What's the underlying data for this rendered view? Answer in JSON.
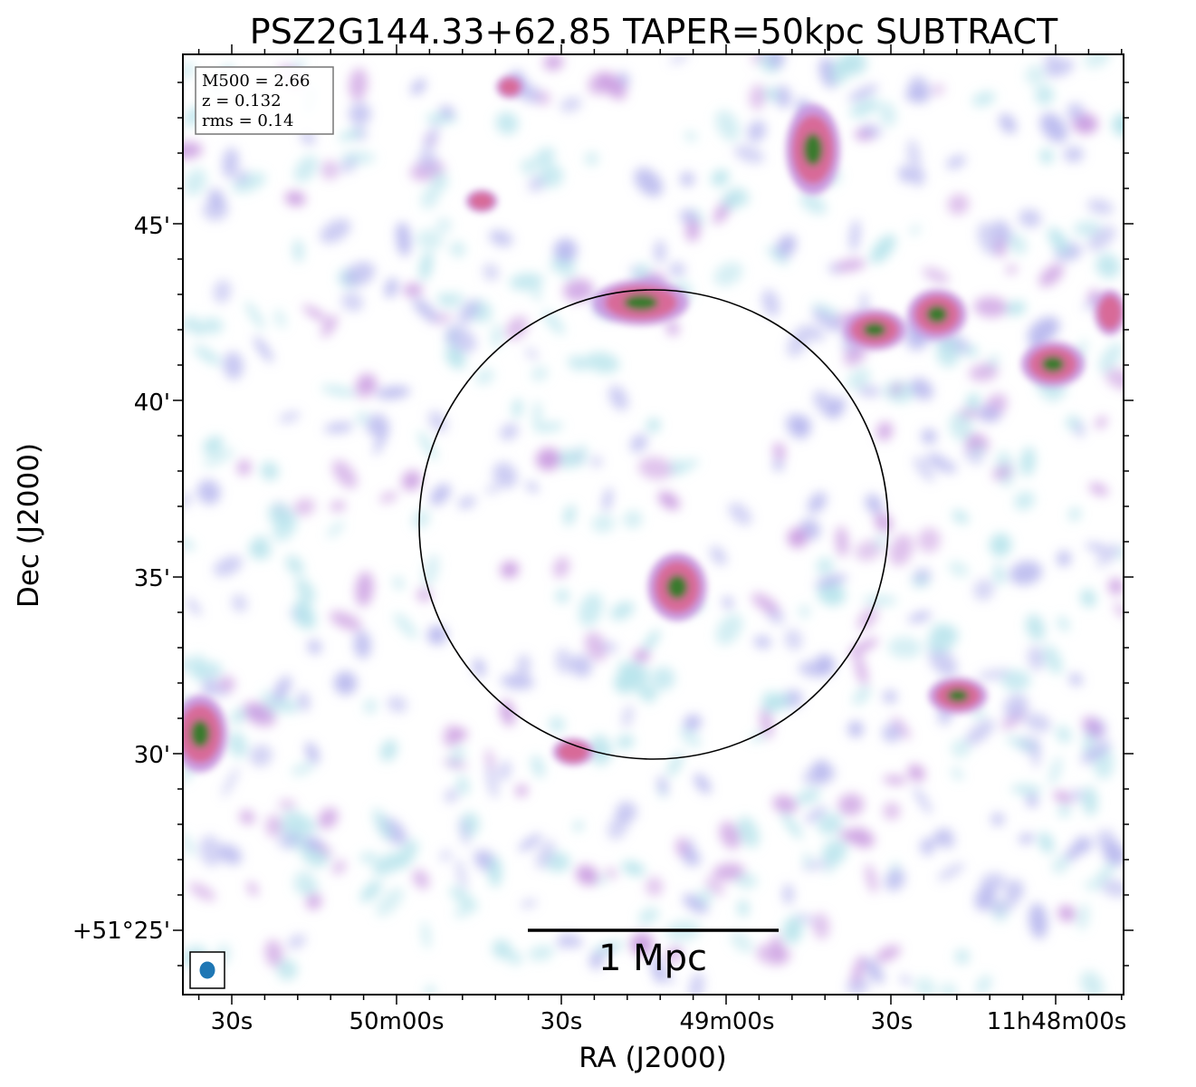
{
  "title": "PSZ2G144.33+62.85 TAPER=50kpc SUBTRACT",
  "info_box": {
    "lines": [
      "M500 = 2.66",
      "z = 0.132",
      "rms = 0.14"
    ]
  },
  "scale_bar": {
    "label": "1 Mpc"
  },
  "axes": {
    "xlabel": "RA (J2000)",
    "ylabel": "Dec (J2000)",
    "x_ticks": [
      "30s",
      "50m00s",
      "30s",
      "49m00s",
      "30s",
      "11h48m00s"
    ],
    "y_ticks": [
      "+51°25'",
      "30'",
      "35'",
      "40'",
      "45'"
    ]
  },
  "colors": {
    "faint": "#b9e4ec",
    "low": "#b8b8ee",
    "mid": "#c99ae0",
    "high": "#d86a98",
    "peak": "#3b7a2e",
    "beam": "#1f77b4"
  }
}
